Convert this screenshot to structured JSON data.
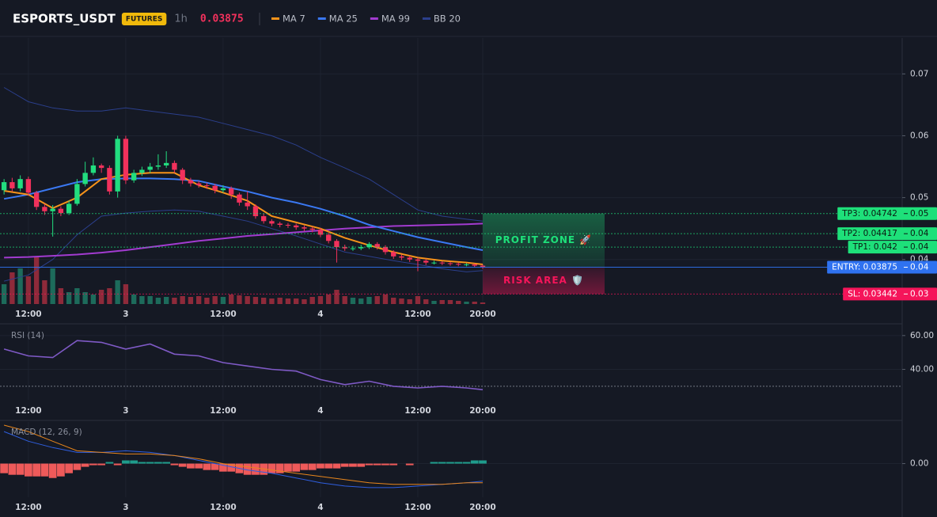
{
  "chart_data": [
    {
      "type": "candlestick",
      "title": "ESPORTS_USDT",
      "badge": "FUTURES",
      "interval": "1h",
      "last_price": 0.03875,
      "up_color": "#22dd7f",
      "down_color": "#f2315c",
      "volume_up_color": "#1d6b5b",
      "volume_down_color": "#8e2a3a",
      "xlim": [
        -0.5,
        110.7
      ],
      "xticks": [
        {
          "value": 3,
          "label": "12:00"
        },
        {
          "value": 15,
          "label": "3"
        },
        {
          "value": 27,
          "label": "12:00"
        },
        {
          "value": 39,
          "label": "4"
        },
        {
          "value": 51,
          "label": "12:00"
        },
        {
          "value": 59,
          "label": "20:00"
        }
      ],
      "ylim": [
        0.0328,
        0.0758
      ],
      "yticks": [
        0.07,
        0.06,
        0.05,
        0.04
      ],
      "grid": true,
      "open": [
        0.0512,
        0.0525,
        0.0515,
        0.053,
        0.0508,
        0.0485,
        0.0478,
        0.0482,
        0.0475,
        0.049,
        0.0522,
        0.054,
        0.0552,
        0.0548,
        0.051,
        0.0595,
        0.0528,
        0.054,
        0.0545,
        0.055,
        0.0552,
        0.0556,
        0.0545,
        0.0528,
        0.0523,
        0.052,
        0.0519,
        0.0512,
        0.0515,
        0.0505,
        0.0492,
        0.0486,
        0.047,
        0.0462,
        0.0458,
        0.0456,
        0.0455,
        0.0452,
        0.045,
        0.0448,
        0.044,
        0.043,
        0.042,
        0.0418,
        0.0418,
        0.042,
        0.0425,
        0.042,
        0.0412,
        0.0405,
        0.0403,
        0.04,
        0.0398,
        0.0395,
        0.0395,
        0.0394,
        0.0393,
        0.0392,
        0.0392,
        0.039
      ],
      "high": [
        0.053,
        0.0532,
        0.0536,
        0.0534,
        0.0511,
        0.049,
        0.0488,
        0.0486,
        0.0495,
        0.053,
        0.0558,
        0.0565,
        0.0555,
        0.0552,
        0.06,
        0.06,
        0.0545,
        0.055,
        0.0556,
        0.057,
        0.0575,
        0.056,
        0.0548,
        0.0532,
        0.0527,
        0.0524,
        0.0522,
        0.052,
        0.0518,
        0.0508,
        0.051,
        0.0489,
        0.0474,
        0.0465,
        0.0461,
        0.0459,
        0.0458,
        0.0455,
        0.0453,
        0.0451,
        0.0443,
        0.0433,
        0.0424,
        0.0422,
        0.0424,
        0.0428,
        0.0428,
        0.0423,
        0.0415,
        0.0408,
        0.0406,
        0.0403,
        0.0401,
        0.0398,
        0.0397,
        0.0396,
        0.0395,
        0.0394,
        0.0393,
        0.0392
      ],
      "low": [
        0.0505,
        0.051,
        0.051,
        0.0503,
        0.048,
        0.0472,
        0.0437,
        0.047,
        0.0472,
        0.0487,
        0.0518,
        0.0536,
        0.054,
        0.0505,
        0.05,
        0.0522,
        0.0524,
        0.0535,
        0.054,
        0.0545,
        0.0548,
        0.054,
        0.0522,
        0.0518,
        0.0516,
        0.0514,
        0.0507,
        0.0508,
        0.0498,
        0.0487,
        0.048,
        0.0466,
        0.0458,
        0.0454,
        0.0452,
        0.0451,
        0.0448,
        0.0446,
        0.0444,
        0.0436,
        0.0426,
        0.0395,
        0.0414,
        0.0414,
        0.0415,
        0.0417,
        0.0416,
        0.0408,
        0.0401,
        0.0399,
        0.0396,
        0.0381,
        0.0391,
        0.0392,
        0.0391,
        0.039,
        0.0389,
        0.0389,
        0.0387,
        0.0385
      ],
      "close": [
        0.0525,
        0.0515,
        0.053,
        0.0508,
        0.0485,
        0.0478,
        0.0482,
        0.0475,
        0.049,
        0.0522,
        0.054,
        0.0552,
        0.0548,
        0.051,
        0.0595,
        0.0528,
        0.054,
        0.0545,
        0.055,
        0.0552,
        0.0556,
        0.0545,
        0.0528,
        0.0523,
        0.052,
        0.0519,
        0.0512,
        0.0515,
        0.0505,
        0.0492,
        0.0486,
        0.047,
        0.0462,
        0.0458,
        0.0456,
        0.0455,
        0.0452,
        0.045,
        0.0448,
        0.044,
        0.043,
        0.042,
        0.0418,
        0.0418,
        0.042,
        0.0425,
        0.042,
        0.0412,
        0.0405,
        0.0403,
        0.04,
        0.0398,
        0.0395,
        0.0395,
        0.0394,
        0.0393,
        0.0392,
        0.0392,
        0.039,
        0.03875
      ],
      "volume_ylim": [
        0,
        70
      ],
      "volume": [
        25,
        40,
        45,
        35,
        60,
        30,
        45,
        20,
        15,
        20,
        15,
        12,
        18,
        20,
        30,
        25,
        12,
        10,
        10,
        8,
        9,
        8,
        10,
        9,
        10,
        8,
        10,
        9,
        12,
        11,
        10,
        9,
        8,
        7,
        8,
        7,
        7,
        6,
        9,
        10,
        12,
        18,
        10,
        8,
        7,
        9,
        10,
        12,
        8,
        7,
        6,
        10,
        6,
        4,
        5,
        5,
        4,
        3,
        3,
        2
      ],
      "series": [
        {
          "name": "MA 7",
          "color": "#f7931a",
          "x": [
            0,
            3,
            6,
            9,
            12,
            15,
            18,
            21,
            24,
            27,
            30,
            33,
            36,
            39,
            42,
            45,
            48,
            51,
            54,
            57,
            59
          ],
          "values": [
            0.0511,
            0.0505,
            0.0483,
            0.05,
            0.053,
            0.0537,
            0.054,
            0.054,
            0.052,
            0.0508,
            0.0495,
            0.047,
            0.046,
            0.045,
            0.0435,
            0.0423,
            0.0412,
            0.0403,
            0.0398,
            0.0395,
            0.0392
          ]
        },
        {
          "name": "MA 25",
          "color": "#3a78f2",
          "x": [
            0,
            3,
            6,
            9,
            12,
            15,
            18,
            21,
            24,
            27,
            30,
            33,
            36,
            39,
            42,
            45,
            48,
            51,
            54,
            57,
            59
          ],
          "values": [
            0.0498,
            0.0505,
            0.0515,
            0.0525,
            0.053,
            0.0531,
            0.0531,
            0.053,
            0.0527,
            0.0518,
            0.051,
            0.05,
            0.0492,
            0.0482,
            0.047,
            0.0456,
            0.0446,
            0.0436,
            0.0428,
            0.042,
            0.0415
          ]
        },
        {
          "name": "MA 99",
          "color": "#a23bd0",
          "x": [
            0,
            3,
            6,
            9,
            12,
            15,
            18,
            21,
            24,
            27,
            30,
            33,
            36,
            39,
            42,
            45,
            48,
            51,
            54,
            57,
            59
          ],
          "values": [
            0.0403,
            0.0404,
            0.0406,
            0.0408,
            0.0411,
            0.0415,
            0.042,
            0.0425,
            0.043,
            0.0434,
            0.0438,
            0.0441,
            0.0444,
            0.0447,
            0.045,
            0.0452,
            0.0454,
            0.0455,
            0.0456,
            0.0457,
            0.0458
          ]
        },
        {
          "name": "BB 20",
          "color": "#2b3f8c",
          "x": [
            0,
            3,
            6,
            9,
            12,
            15,
            18,
            21,
            24,
            27,
            30,
            33,
            36,
            39,
            42,
            45,
            48,
            51,
            54,
            57,
            59
          ],
          "upper": [
            0.0678,
            0.0655,
            0.0645,
            0.064,
            0.064,
            0.0645,
            0.064,
            0.0635,
            0.063,
            0.062,
            0.061,
            0.06,
            0.0585,
            0.0565,
            0.0548,
            0.053,
            0.0505,
            0.048,
            0.047,
            0.0465,
            0.0462
          ],
          "lower": [
            0.0365,
            0.0375,
            0.04,
            0.044,
            0.047,
            0.0475,
            0.0478,
            0.048,
            0.0478,
            0.047,
            0.0462,
            0.045,
            0.0438,
            0.0425,
            0.0412,
            0.0405,
            0.0398,
            0.0392,
            0.0385,
            0.038,
            0.0382
          ]
        }
      ],
      "levels": [
        {
          "label": "TP3: 0.04742",
          "value": 0.04742,
          "axis_label": "0.05",
          "color": "#1ee07a"
        },
        {
          "label": "TP2: 0.04417",
          "value": 0.04417,
          "axis_label": "0.04",
          "color": "#1ee07a"
        },
        {
          "label": "TP1: 0.042",
          "value": 0.042,
          "axis_label": "0.04",
          "color": "#1ee07a"
        },
        {
          "label": "ENTRY: 0.03875",
          "value": 0.03875,
          "axis_label": "0.04",
          "color": "#2f72f0"
        },
        {
          "label": "SL: 0.03442",
          "value": 0.03442,
          "axis_label": "0.03",
          "color": "#f5155a"
        }
      ],
      "zones": [
        {
          "label": "PROFIT ZONE 🚀",
          "color": "#1ee07a"
        },
        {
          "label": "RISK AREA 🛡️",
          "color": "#f5155a"
        }
      ]
    },
    {
      "type": "line",
      "title": "RSI (14)",
      "xlim": [
        -0.5,
        110.7
      ],
      "xticks": [
        {
          "value": 3,
          "label": "12:00"
        },
        {
          "value": 15,
          "label": "3"
        },
        {
          "value": 27,
          "label": "12:00"
        },
        {
          "value": 39,
          "label": "4"
        },
        {
          "value": 51,
          "label": "12:00"
        },
        {
          "value": 59,
          "label": "20:00"
        }
      ],
      "ylim": [
        22,
        66
      ],
      "yticks": [
        {
          "value": 60,
          "label": "60.00"
        },
        {
          "value": 40,
          "label": "40.00"
        }
      ],
      "hline": 30,
      "series": [
        {
          "color": "#7f5ac6",
          "x": [
            0,
            3,
            6,
            9,
            12,
            15,
            18,
            21,
            24,
            27,
            30,
            33,
            36,
            39,
            42,
            45,
            48,
            51,
            54,
            57,
            59
          ],
          "values": [
            52,
            48,
            47,
            57,
            56,
            52,
            55,
            49,
            48,
            44,
            42,
            40,
            39,
            34,
            31,
            33,
            30,
            29,
            30,
            29,
            28
          ]
        }
      ]
    },
    {
      "type": "macd",
      "title": "MACD (12, 26, 9)",
      "xlim": [
        -0.5,
        110.7
      ],
      "xticks": [
        {
          "value": 3,
          "label": "12:00"
        },
        {
          "value": 15,
          "label": "3"
        },
        {
          "value": 27,
          "label": "12:00"
        },
        {
          "value": 39,
          "label": "4"
        },
        {
          "value": 51,
          "label": "12:00"
        },
        {
          "value": 59,
          "label": "20:00"
        }
      ],
      "ylim": [
        -0.0021,
        0.0026
      ],
      "yticks": [
        {
          "value": 0,
          "label": "0.00"
        }
      ],
      "up_color": "#1f9c8c",
      "down_color": "#ee5a5a",
      "histogram": [
        -0.0006,
        -0.0007,
        -0.0007,
        -0.0008,
        -0.0008,
        -0.0008,
        -0.0009,
        -0.0008,
        -0.0006,
        -0.0004,
        -0.0002,
        -0.0001,
        -0.0001,
        0.0001,
        -0.0001,
        0.0002,
        0.0002,
        0.0001,
        0.0001,
        0.0001,
        0.0001,
        -0.0001,
        -0.0002,
        -0.0003,
        -0.0003,
        -0.0004,
        -0.0004,
        -0.0005,
        -0.0005,
        -0.0006,
        -0.0007,
        -0.0007,
        -0.0007,
        -0.0006,
        -0.0006,
        -0.0005,
        -0.0005,
        -0.0004,
        -0.0004,
        -0.0003,
        -0.0003,
        -0.0003,
        -0.0002,
        -0.0002,
        -0.0002,
        -0.0001,
        -0.0001,
        -0.0001,
        -0.0001,
        0,
        -0.0001,
        0,
        0,
        0.0001,
        0.0001,
        0.0001,
        0.0001,
        0.0001,
        0.0002,
        0.0002
      ],
      "series": [
        {
          "color": "#2f5fe0",
          "x": [
            0,
            3,
            6,
            9,
            12,
            15,
            18,
            21,
            24,
            27,
            30,
            33,
            36,
            39,
            42,
            45,
            48,
            51,
            54,
            57,
            59
          ],
          "values": [
            0.002,
            0.0014,
            0.001,
            0.0007,
            0.0007,
            0.0008,
            0.0007,
            0.0005,
            0.0002,
            -0.0001,
            -0.0004,
            -0.0006,
            -0.0009,
            -0.0012,
            -0.0014,
            -0.0015,
            -0.0015,
            -0.0014,
            -0.0013,
            -0.0012,
            -0.0011
          ]
        },
        {
          "color": "#e8861c",
          "x": [
            0,
            3,
            6,
            9,
            12,
            15,
            18,
            21,
            24,
            27,
            30,
            33,
            36,
            39,
            42,
            45,
            48,
            51,
            54,
            57,
            59
          ],
          "values": [
            0.0024,
            0.002,
            0.0014,
            0.0008,
            0.0007,
            0.0006,
            0.0006,
            0.0005,
            0.0003,
            0.0,
            -0.0002,
            -0.0004,
            -0.0006,
            -0.0008,
            -0.001,
            -0.0012,
            -0.0013,
            -0.0013,
            -0.0013,
            -0.0012,
            -0.0012
          ]
        }
      ]
    }
  ]
}
